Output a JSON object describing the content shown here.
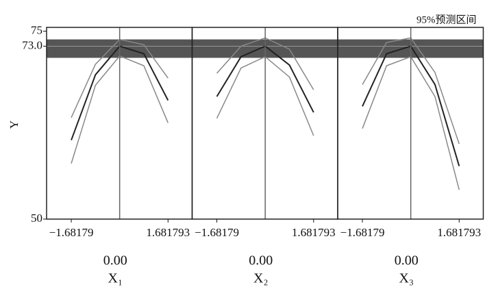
{
  "chart_data": [
    {
      "type": "line",
      "ylabel": "Y",
      "ylim": [
        50,
        75.5
      ],
      "yticks": [
        50,
        {
          "value": 73,
          "label": "73.0"
        },
        75
      ],
      "band": [
        71.45,
        73.9
      ],
      "band_color": "#555555",
      "band_label": "95%预测区间",
      "xlabel": "X₁",
      "current": {
        "value": 0,
        "label": "0.00"
      },
      "xlim": [
        -2.54,
        2.52
      ],
      "xticks": [
        {
          "value": -1.68179,
          "label": "−1.68179"
        },
        1.681793
      ],
      "x": [
        -1.68179,
        -0.841,
        0,
        0.841,
        1.681793
      ],
      "series": [
        {
          "color": "#222222",
          "values": [
            60.5,
            69.2,
            73.0,
            72.0,
            65.8
          ]
        },
        {
          "color": "#888888",
          "values": [
            63.5,
            70.6,
            73.9,
            73.2,
            68.75
          ]
        },
        {
          "color": "#888888",
          "values": [
            57.4,
            67.8,
            71.7,
            70.4,
            62.8
          ]
        }
      ]
    },
    {
      "type": "line",
      "xlabel": "X₂",
      "current": {
        "value": 0,
        "label": "0.00"
      },
      "xlim": [
        -2.54,
        2.52
      ],
      "xticks": [
        {
          "value": -1.68179,
          "label": "−1.68179"
        },
        1.681793
      ],
      "x": [
        -1.68179,
        -0.841,
        0,
        0.841,
        1.681793
      ],
      "series": [
        {
          "color": "#222222",
          "values": [
            66.3,
            71.6,
            73.0,
            70.5,
            64.2
          ]
        },
        {
          "color": "#888888",
          "values": [
            69.4,
            73.0,
            74.1,
            72.6,
            67.2
          ]
        },
        {
          "color": "#888888",
          "values": [
            63.4,
            70.1,
            71.6,
            68.9,
            61.1
          ]
        }
      ]
    },
    {
      "type": "line",
      "xlabel": "X₃",
      "current": {
        "value": 0,
        "label": "0.00"
      },
      "xlim": [
        -2.54,
        2.52
      ],
      "xticks": [
        {
          "value": -1.68179,
          "label": "−1.68179"
        },
        1.681793
      ],
      "x": [
        -1.68179,
        -0.841,
        0,
        0.841,
        1.681793
      ],
      "series": [
        {
          "color": "#222222",
          "values": [
            65.0,
            72.0,
            73.0,
            67.9,
            57.05
          ]
        },
        {
          "color": "#888888",
          "values": [
            67.9,
            73.5,
            74.1,
            69.5,
            60.0
          ]
        },
        {
          "color": "#888888",
          "values": [
            62.05,
            70.4,
            71.6,
            66.3,
            53.9
          ]
        }
      ]
    }
  ]
}
